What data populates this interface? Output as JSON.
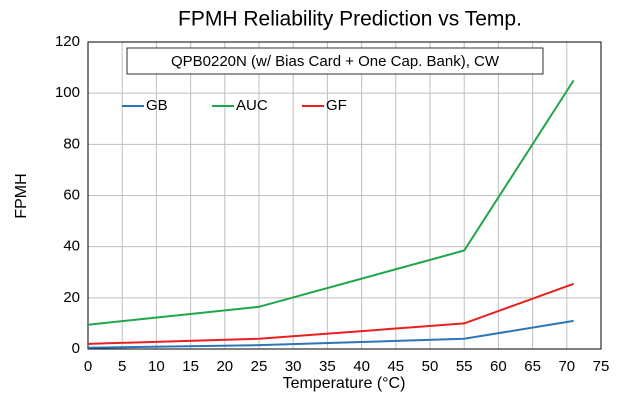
{
  "chart_data": {
    "type": "line",
    "title": "FPMH Reliability Prediction vs Temp.",
    "annotation": "QPB0220N (w/ Bias Card + One Cap. Bank), CW",
    "xlabel": "Temperature (°C)",
    "ylabel": "FPMH",
    "x": [
      0,
      25,
      55,
      71
    ],
    "series": [
      {
        "name": "GB",
        "color": "#2e75b6",
        "values": [
          0.5,
          1.5,
          4,
          11
        ]
      },
      {
        "name": "AUC",
        "color": "#1fa64a",
        "values": [
          9.5,
          16.5,
          38.5,
          105
        ]
      },
      {
        "name": "GF",
        "color": "#e8201f",
        "values": [
          2,
          4,
          10,
          25.5
        ]
      }
    ],
    "xlim": [
      0,
      75
    ],
    "xticks": [
      0,
      5,
      10,
      15,
      20,
      25,
      30,
      35,
      40,
      45,
      50,
      55,
      60,
      65,
      70,
      75
    ],
    "ylim": [
      0,
      120
    ],
    "yticks": [
      0,
      20,
      40,
      60,
      80,
      100,
      120
    ],
    "grid": true,
    "legend": "upper left"
  }
}
